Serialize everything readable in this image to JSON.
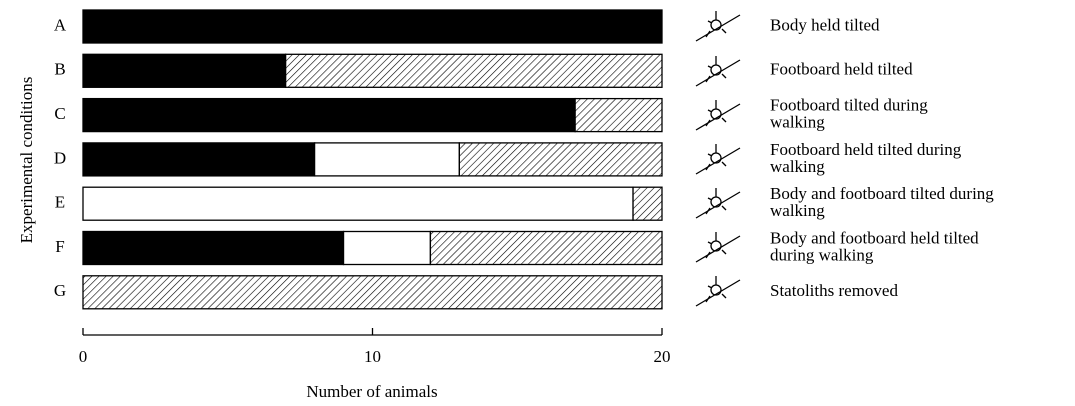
{
  "chart_data": {
    "type": "stacked-barh",
    "categories": [
      "A",
      "B",
      "C",
      "D",
      "E",
      "F",
      "G"
    ],
    "series": [
      {
        "color": "#000000",
        "values": [
          20,
          7,
          17,
          8,
          0,
          9,
          0
        ]
      },
      {
        "color": "#ffffff",
        "values": [
          0,
          0,
          0,
          5,
          19,
          3,
          0
        ]
      },
      {
        "color": "#000000",
        "hatch": true,
        "values": [
          0,
          13,
          3,
          7,
          1,
          8,
          20
        ]
      }
    ],
    "descriptions": [
      [
        "Body held tilted"
      ],
      [
        "Footboard held tilted"
      ],
      [
        "Footboard tilted during",
        "walking"
      ],
      [
        "Footboard held tilted during",
        "walking"
      ],
      [
        "Body and footboard tilted during",
        "walking"
      ],
      [
        "Body and footboard held tilted",
        "during walking"
      ],
      [
        "Statoliths removed"
      ]
    ],
    "x_label": "Number of animals",
    "y_label": "Experimental conditions",
    "xlim": [
      0,
      20
    ],
    "xticks": [
      0,
      10,
      20
    ]
  }
}
